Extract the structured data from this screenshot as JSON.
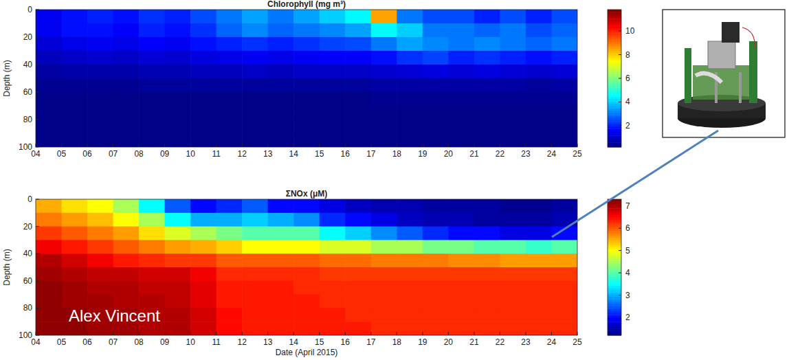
{
  "chart_data": [
    {
      "type": "heatmap",
      "title": "Chlorophyll (mg m³)",
      "y_label": "Depth (m)",
      "x": [
        4.5,
        5.5,
        6.5,
        7.5,
        8.5,
        9.5,
        10.5,
        11.5,
        12.5,
        13.5,
        14.5,
        15.5,
        16.5,
        17.5,
        18.5,
        19.5,
        20.5,
        21.5,
        22.5,
        23.5,
        24.5
      ],
      "y": [
        5,
        15,
        25,
        35,
        45,
        55,
        65,
        75,
        85,
        95
      ],
      "cells": [
        [
          1.5,
          1.8,
          2.0,
          1.8,
          2.2,
          2.0,
          2.5,
          3.0,
          3.5,
          3.0,
          3.5,
          4.0,
          4.5,
          8.5,
          3.0,
          2.5,
          2.5,
          2.0,
          2.5,
          2.0,
          2.5
        ],
        [
          1.5,
          1.8,
          1.8,
          1.6,
          2.0,
          1.8,
          2.2,
          2.8,
          3.2,
          2.8,
          3.0,
          3.2,
          3.5,
          4.5,
          4.0,
          3.0,
          3.0,
          2.8,
          3.0,
          2.5,
          2.8
        ],
        [
          1.2,
          1.4,
          1.5,
          1.4,
          1.6,
          1.5,
          1.8,
          2.0,
          2.2,
          2.0,
          2.2,
          2.4,
          2.5,
          3.0,
          3.5,
          3.2,
          3.0,
          3.2,
          3.0,
          2.8,
          3.0
        ],
        [
          0.9,
          1.0,
          1.1,
          1.0,
          1.2,
          1.1,
          1.3,
          1.4,
          1.5,
          1.4,
          1.5,
          1.6,
          1.6,
          1.8,
          2.2,
          2.4,
          2.0,
          2.2,
          2.0,
          1.8,
          2.0
        ],
        [
          0.6,
          0.7,
          0.7,
          0.7,
          0.8,
          0.8,
          0.9,
          0.9,
          1.0,
          0.9,
          1.0,
          1.0,
          1.0,
          1.1,
          1.2,
          1.3,
          1.2,
          1.3,
          1.2,
          1.1,
          1.2
        ],
        [
          0.4,
          0.4,
          0.4,
          0.4,
          0.5,
          0.5,
          0.5,
          0.5,
          0.5,
          0.5,
          0.5,
          0.5,
          0.5,
          0.6,
          0.6,
          0.6,
          0.6,
          0.6,
          0.6,
          0.5,
          0.6
        ],
        [
          0.3,
          0.3,
          0.3,
          0.3,
          0.3,
          0.3,
          0.3,
          0.3,
          0.3,
          0.3,
          0.3,
          0.3,
          0.3,
          0.4,
          0.4,
          0.4,
          0.4,
          0.4,
          0.4,
          0.4,
          0.4
        ],
        [
          0.3,
          0.3,
          0.3,
          0.3,
          0.3,
          0.3,
          0.3,
          0.3,
          0.3,
          0.3,
          0.3,
          0.3,
          0.3,
          0.3,
          0.3,
          0.3,
          0.3,
          0.3,
          0.3,
          0.3,
          0.3
        ],
        [
          0.3,
          0.3,
          0.3,
          0.3,
          0.3,
          0.3,
          0.3,
          0.3,
          0.3,
          0.3,
          0.3,
          0.3,
          0.3,
          0.3,
          0.3,
          0.3,
          0.3,
          0.3,
          0.3,
          0.3,
          0.3
        ],
        [
          0.3,
          0.3,
          0.3,
          0.3,
          0.3,
          0.3,
          0.3,
          0.3,
          0.3,
          0.3,
          0.3,
          0.3,
          0.3,
          0.3,
          0.3,
          0.3,
          0.3,
          0.3,
          0.3,
          0.3,
          0.3
        ]
      ],
      "xlim": [
        4,
        25
      ],
      "xticks": [
        {
          "value": 4,
          "label": "04"
        },
        {
          "value": 5,
          "label": "05"
        },
        {
          "value": 6,
          "label": "06"
        },
        {
          "value": 7,
          "label": "07"
        },
        {
          "value": 8,
          "label": "08"
        },
        {
          "value": 9,
          "label": "09"
        },
        10,
        11,
        12,
        13,
        14,
        15,
        16,
        17,
        18,
        19,
        20,
        21,
        22,
        23,
        24,
        25
      ],
      "ylim": [
        0,
        100
      ],
      "yticks": [
        0,
        20,
        40,
        60,
        80,
        100
      ],
      "color_range": [
        0.2,
        11.8
      ],
      "color_ticks": [
        2,
        4,
        6,
        8,
        10
      ]
    },
    {
      "type": "heatmap",
      "title": "ΣNOx (μM)",
      "x_label": "Date (April 2015)",
      "y_label": "Depth (m)",
      "annotation": "Alex Vincent",
      "x": [
        4.5,
        5.5,
        6.5,
        7.5,
        8.5,
        9.5,
        10.5,
        11.5,
        12.5,
        13.5,
        14.5,
        15.5,
        16.5,
        17.5,
        18.5,
        19.5,
        20.5,
        21.5,
        22.5,
        23.5,
        24.5
      ],
      "y": [
        5,
        15,
        25,
        35,
        45,
        55,
        65,
        75,
        85,
        95
      ],
      "cells": [
        [
          5.5,
          5.2,
          5.0,
          4.5,
          3.5,
          2.5,
          2.0,
          2.2,
          2.5,
          2.0,
          2.0,
          1.8,
          1.6,
          1.5,
          1.5,
          1.4,
          1.4,
          1.4,
          1.3,
          1.3,
          1.4
        ],
        [
          5.8,
          5.6,
          5.4,
          5.0,
          4.5,
          3.5,
          3.0,
          3.0,
          3.2,
          3.0,
          2.8,
          2.2,
          2.0,
          1.8,
          1.6,
          1.5,
          1.5,
          1.4,
          1.4,
          1.4,
          1.5
        ],
        [
          6.2,
          6.0,
          5.8,
          5.6,
          5.2,
          4.8,
          4.5,
          4.2,
          4.0,
          4.0,
          4.0,
          3.5,
          3.2,
          2.8,
          2.5,
          2.2,
          2.0,
          2.0,
          1.8,
          1.8,
          2.0
        ],
        [
          6.6,
          6.4,
          6.2,
          6.0,
          5.8,
          5.6,
          5.5,
          5.3,
          5.0,
          5.0,
          5.0,
          4.8,
          4.8,
          4.5,
          4.5,
          4.2,
          4.2,
          4.0,
          4.0,
          3.8,
          4.0
        ],
        [
          7.0,
          6.8,
          6.6,
          6.4,
          6.3,
          6.2,
          6.2,
          6.0,
          6.0,
          6.0,
          6.0,
          5.9,
          5.9,
          5.8,
          5.8,
          5.8,
          5.7,
          5.7,
          5.6,
          5.6,
          5.6
        ],
        [
          7.1,
          7.0,
          6.9,
          6.9,
          6.8,
          6.8,
          6.6,
          6.3,
          6.3,
          6.3,
          6.3,
          6.2,
          6.2,
          6.2,
          6.2,
          6.2,
          6.2,
          6.2,
          6.2,
          6.2,
          6.2
        ],
        [
          7.2,
          7.1,
          7.0,
          7.0,
          6.9,
          6.9,
          6.7,
          6.4,
          6.4,
          6.4,
          6.3,
          6.3,
          6.3,
          6.3,
          6.3,
          6.3,
          6.3,
          6.3,
          6.3,
          6.3,
          6.3
        ],
        [
          7.2,
          7.1,
          7.1,
          7.0,
          7.0,
          6.9,
          6.7,
          6.4,
          6.4,
          6.4,
          6.4,
          6.3,
          6.3,
          6.3,
          6.3,
          6.3,
          6.3,
          6.3,
          6.3,
          6.3,
          6.3
        ],
        [
          7.2,
          7.2,
          7.1,
          7.1,
          7.0,
          7.0,
          6.8,
          6.5,
          6.4,
          6.4,
          6.4,
          6.4,
          6.3,
          6.3,
          6.3,
          6.3,
          6.3,
          6.3,
          6.3,
          6.3,
          6.3
        ],
        [
          7.2,
          7.2,
          7.1,
          7.1,
          7.0,
          7.0,
          6.8,
          6.5,
          6.4,
          6.4,
          6.4,
          6.4,
          6.4,
          6.3,
          6.3,
          6.3,
          6.3,
          6.3,
          6.3,
          6.3,
          6.3
        ]
      ],
      "xlim": [
        4,
        25
      ],
      "xticks": [
        {
          "value": 4,
          "label": "04"
        },
        {
          "value": 5,
          "label": "05"
        },
        {
          "value": 6,
          "label": "06"
        },
        {
          "value": 7,
          "label": "07"
        },
        {
          "value": 8,
          "label": "08"
        },
        {
          "value": 9,
          "label": "09"
        },
        10,
        11,
        12,
        13,
        14,
        15,
        16,
        17,
        18,
        19,
        20,
        21,
        22,
        23,
        24,
        25
      ],
      "ylim": [
        0,
        100
      ],
      "yticks": [
        0,
        20,
        40,
        60,
        80,
        100
      ],
      "color_range": [
        1.2,
        7.3
      ],
      "color_ticks": [
        2,
        3,
        4,
        5,
        6,
        7
      ]
    }
  ]
}
